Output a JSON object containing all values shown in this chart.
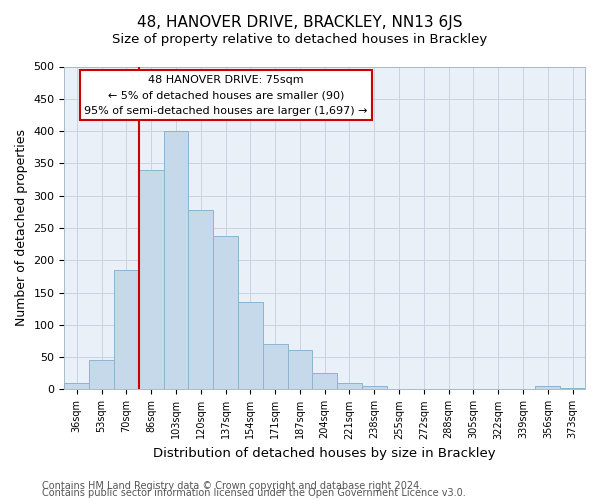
{
  "title": "48, HANOVER DRIVE, BRACKLEY, NN13 6JS",
  "subtitle": "Size of property relative to detached houses in Brackley",
  "xlabel": "Distribution of detached houses by size in Brackley",
  "ylabel": "Number of detached properties",
  "bar_labels": [
    "36sqm",
    "53sqm",
    "70sqm",
    "86sqm",
    "103sqm",
    "120sqm",
    "137sqm",
    "154sqm",
    "171sqm",
    "187sqm",
    "204sqm",
    "221sqm",
    "238sqm",
    "255sqm",
    "272sqm",
    "288sqm",
    "305sqm",
    "322sqm",
    "339sqm",
    "356sqm",
    "373sqm"
  ],
  "bar_values": [
    10,
    46,
    185,
    340,
    400,
    278,
    238,
    135,
    70,
    61,
    26,
    10,
    5,
    1,
    1,
    0,
    0,
    0,
    0,
    5,
    2
  ],
  "bar_color": "#c5d9ea",
  "bar_edge_color": "#8ab4cf",
  "property_line_label": "48 HANOVER DRIVE: 75sqm",
  "annotation_line1": "← 5% of detached houses are smaller (90)",
  "annotation_line2": "95% of semi-detached houses are larger (1,697) →",
  "annotation_box_color": "#ffffff",
  "annotation_box_edge": "#cc0000",
  "line_color": "#cc0000",
  "ylim": [
    0,
    500
  ],
  "footer1": "Contains HM Land Registry data © Crown copyright and database right 2024.",
  "footer2": "Contains public sector information licensed under the Open Government Licence v3.0.",
  "title_fontsize": 11,
  "xlabel_fontsize": 9.5,
  "ylabel_fontsize": 9,
  "footer_fontsize": 7,
  "yticks": [
    0,
    50,
    100,
    150,
    200,
    250,
    300,
    350,
    400,
    450,
    500
  ],
  "bg_color": "#eaf0f8"
}
